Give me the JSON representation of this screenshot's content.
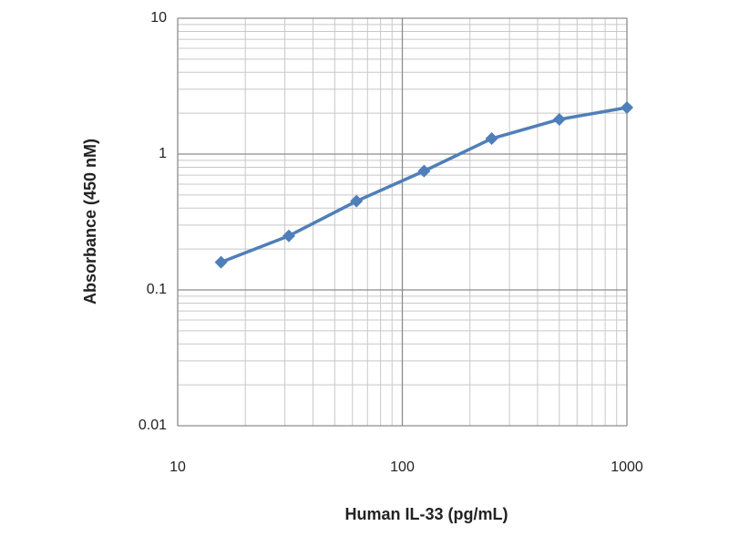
{
  "chart_data": {
    "type": "line",
    "x_label": "Human IL-33 (pg/mL)",
    "y_label": "Absorbance (450 nM)",
    "x": [
      15.6,
      31.25,
      62.5,
      125,
      250,
      500,
      1000
    ],
    "series": [
      {
        "color": "#4f7fb8",
        "values": [
          0.16,
          0.25,
          0.45,
          0.75,
          1.3,
          1.8,
          2.2
        ]
      }
    ],
    "xlim": [
      10,
      1000
    ],
    "ylim": [
      0.01,
      10
    ],
    "xticks": [
      10,
      100,
      1000
    ],
    "yticks": [
      0.01,
      0.1,
      1,
      10
    ],
    "xscale": "log",
    "yscale": "log",
    "grid": true,
    "minor_grid": true
  }
}
